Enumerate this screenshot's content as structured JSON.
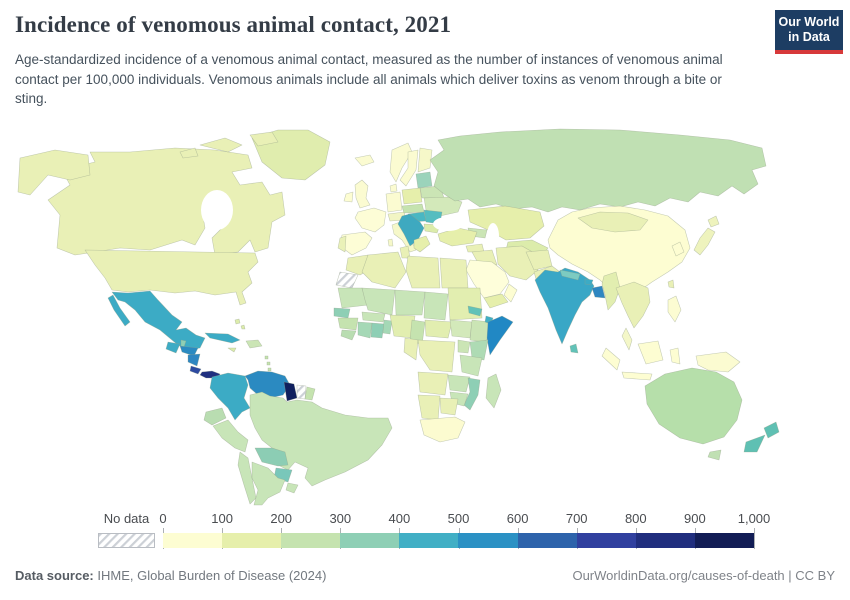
{
  "header": {
    "title": "Incidence of venomous animal contact, 2021",
    "subtitle": "Age-standardized incidence of a venomous animal contact, measured as the number of instances of venomous animal contact per 100,000 individuals. Venomous animals include all animals which deliver toxins as venom through a bite or sting.",
    "logo": {
      "line1": "Our World",
      "line2": "in Data",
      "bg_color": "#1d3d63",
      "accent_color": "#d7393a"
    }
  },
  "chart_data": {
    "type": "choropleth_map",
    "title": "Incidence of venomous animal contact, 2021",
    "unit": "instances of venomous animal contact per 100,000 individuals",
    "year": "2021",
    "legend": {
      "no_data_label": "No data",
      "tick_labels": [
        "0",
        "100",
        "200",
        "300",
        "400",
        "500",
        "600",
        "700",
        "800",
        "900",
        "1,000"
      ],
      "bins": [
        {
          "range": "0-100",
          "color": "#fdfdd2"
        },
        {
          "range": "100-200",
          "color": "#e6efab"
        },
        {
          "range": "200-300",
          "color": "#c5e3af"
        },
        {
          "range": "300-400",
          "color": "#8ecfb5"
        },
        {
          "range": "400-500",
          "color": "#41afc5"
        },
        {
          "range": "500-600",
          "color": "#2b91c4"
        },
        {
          "range": "600-700",
          "color": "#2d63ab"
        },
        {
          "range": "700-800",
          "color": "#30409f"
        },
        {
          "range": "800-900",
          "color": "#202e7e"
        },
        {
          "range": "900-1000",
          "color": "#121d55"
        }
      ]
    },
    "regions": [
      {
        "id": "greenland",
        "bin": "100-200",
        "color": "#e0edae"
      },
      {
        "id": "canada",
        "bin": "100-200",
        "color": "#e9f0b6"
      },
      {
        "id": "usa",
        "bin": "100-200",
        "color": "#e9f0b6"
      },
      {
        "id": "mexico",
        "bin": "400-500",
        "color": "#3cabc5"
      },
      {
        "id": "cuba",
        "bin": "400-500",
        "color": "#3cabc5"
      },
      {
        "id": "bahamas",
        "bin": "100-200",
        "color": "#dcecab"
      },
      {
        "id": "hispaniola",
        "bin": "200-300",
        "color": "#cbe5b5"
      },
      {
        "id": "jamaica",
        "bin": "100-200",
        "color": "#dcecab"
      },
      {
        "id": "lesser_antilles",
        "bin": "200-300",
        "color": "#c5e3af"
      },
      {
        "id": "trinidad",
        "bin": "200-300",
        "color": "#c5e3af"
      },
      {
        "id": "guatemala",
        "bin": "400-500",
        "color": "#3cabc5"
      },
      {
        "id": "belize",
        "bin": "300-400",
        "color": "#8ecfb5"
      },
      {
        "id": "honduras",
        "bin": "500-600",
        "color": "#2b8ac1"
      },
      {
        "id": "nicaragua",
        "bin": "500-600",
        "color": "#2e86c1"
      },
      {
        "id": "costa_rica",
        "bin": "700-800",
        "color": "#2d4aa1"
      },
      {
        "id": "panama",
        "bin": "800-900",
        "color": "#20307f"
      },
      {
        "id": "colombia",
        "bin": "400-500",
        "color": "#3cabc5"
      },
      {
        "id": "venezuela",
        "bin": "500-600",
        "color": "#2b8ac1"
      },
      {
        "id": "guyana",
        "bin": "900-1000",
        "color": "#0f1f5e"
      },
      {
        "id": "suriname",
        "bin": "no data",
        "color": "no-data"
      },
      {
        "id": "french_guiana",
        "bin": "200-300",
        "color": "#c5e3af"
      },
      {
        "id": "ecuador",
        "bin": "200-300",
        "color": "#b9ddb1"
      },
      {
        "id": "peru",
        "bin": "200-300",
        "color": "#c8e5b8"
      },
      {
        "id": "brazil",
        "bin": "200-300",
        "color": "#c8e5b8"
      },
      {
        "id": "bolivia",
        "bin": "300-400",
        "color": "#8ccdb4"
      },
      {
        "id": "paraguay",
        "bin": "300-400",
        "color": "#79c7ba"
      },
      {
        "id": "chile",
        "bin": "200-300",
        "color": "#c8e5b8"
      },
      {
        "id": "argentina",
        "bin": "200-300",
        "color": "#c8e5b8"
      },
      {
        "id": "uruguay",
        "bin": "200-300",
        "color": "#c8e5b8"
      },
      {
        "id": "iceland",
        "bin": "0-100",
        "color": "#fbfbd1"
      },
      {
        "id": "uk",
        "bin": "0-100",
        "color": "#fbfbd1"
      },
      {
        "id": "ireland",
        "bin": "0-100",
        "color": "#fdfdd2"
      },
      {
        "id": "norway",
        "bin": "0-100",
        "color": "#fbfbd1"
      },
      {
        "id": "sweden",
        "bin": "0-100",
        "color": "#fbfbd1"
      },
      {
        "id": "finland",
        "bin": "0-100",
        "color": "#f6f8c9"
      },
      {
        "id": "denmark",
        "bin": "0-100",
        "color": "#fbfbd1"
      },
      {
        "id": "baltics",
        "bin": "300-400",
        "color": "#9bd3bb"
      },
      {
        "id": "belarus",
        "bin": "200-300",
        "color": "#cbe5b5"
      },
      {
        "id": "ukraine",
        "bin": "200-300",
        "color": "#d3e9ba"
      },
      {
        "id": "poland",
        "bin": "100-200",
        "color": "#e6efab"
      },
      {
        "id": "germany",
        "bin": "0-100",
        "color": "#fbfbd1"
      },
      {
        "id": "france",
        "bin": "0-100",
        "color": "#fdfdd6"
      },
      {
        "id": "spain",
        "bin": "0-100",
        "color": "#fdfdd6"
      },
      {
        "id": "portugal",
        "bin": "100-200",
        "color": "#eaf1b8"
      },
      {
        "id": "italy",
        "bin": "0-100",
        "color": "#f6f8c9"
      },
      {
        "id": "alpine",
        "bin": "0-100",
        "color": "#f2f5c4"
      },
      {
        "id": "czech_slovakia",
        "bin": "200-300",
        "color": "#c5e3af"
      },
      {
        "id": "hungary",
        "bin": "400-500",
        "color": "#49b7c3"
      },
      {
        "id": "romania",
        "bin": "300-400",
        "color": "#55bdc0"
      },
      {
        "id": "balkans",
        "bin": "400-500",
        "color": "#3ea9c0"
      },
      {
        "id": "bulgaria",
        "bin": "100-200",
        "color": "#dcecab"
      },
      {
        "id": "greece",
        "bin": "100-200",
        "color": "#e6efab"
      },
      {
        "id": "russia",
        "bin": "200-300",
        "color": "#c0e0b3"
      },
      {
        "id": "turkey",
        "bin": "100-200",
        "color": "#e6efab"
      },
      {
        "id": "caucasus",
        "bin": "200-300",
        "color": "#cbe5b5"
      },
      {
        "id": "syria",
        "bin": "100-200",
        "color": "#e9f0b6"
      },
      {
        "id": "iraq",
        "bin": "100-200",
        "color": "#e9f0b6"
      },
      {
        "id": "iran",
        "bin": "100-200",
        "color": "#e9f0b6"
      },
      {
        "id": "saudi_arabia",
        "bin": "0-100",
        "color": "#fefeda"
      },
      {
        "id": "yemen",
        "bin": "100-200",
        "color": "#e6efab"
      },
      {
        "id": "oman",
        "bin": "0-100",
        "color": "#fdfdd2"
      },
      {
        "id": "afghanistan",
        "bin": "100-200",
        "color": "#e9f0b6"
      },
      {
        "id": "pakistan",
        "bin": "100-200",
        "color": "#e9f0b6"
      },
      {
        "id": "kazakhstan",
        "bin": "100-200",
        "color": "#e6efab"
      },
      {
        "id": "central_asia",
        "bin": "100-200",
        "color": "#dcecab"
      },
      {
        "id": "india",
        "bin": "400-500",
        "color": "#39a7c6"
      },
      {
        "id": "nepal",
        "bin": "300-400",
        "color": "#7ccbc1"
      },
      {
        "id": "bhutan",
        "bin": "400-500",
        "color": "#3cabc5"
      },
      {
        "id": "bangladesh",
        "bin": "500-600",
        "color": "#2e86c1"
      },
      {
        "id": "sri_lanka",
        "bin": "300-400",
        "color": "#62c2b8"
      },
      {
        "id": "myanmar",
        "bin": "100-200",
        "color": "#e2eeb0"
      },
      {
        "id": "se_asia",
        "bin": "100-200",
        "color": "#e9f0b6"
      },
      {
        "id": "malay",
        "bin": "0-100",
        "color": "#f4f7c8"
      },
      {
        "id": "china",
        "bin": "0-100",
        "color": "#fdfdd2"
      },
      {
        "id": "mongolia",
        "bin": "100-200",
        "color": "#e9f0b6"
      },
      {
        "id": "korea",
        "bin": "0-100",
        "color": "#fdfdd2"
      },
      {
        "id": "japan",
        "bin": "100-200",
        "color": "#eef3bd"
      },
      {
        "id": "taiwan",
        "bin": "100-200",
        "color": "#e9f0b6"
      },
      {
        "id": "philippines",
        "bin": "0-100",
        "color": "#fcfcd2"
      },
      {
        "id": "indonesia",
        "bin": "0-100",
        "color": "#fdfdd2"
      },
      {
        "id": "png",
        "bin": "0-100",
        "color": "#fbfbd1"
      },
      {
        "id": "australia",
        "bin": "200-300",
        "color": "#b6dfaa"
      },
      {
        "id": "tasmania",
        "bin": "200-300",
        "color": "#c0e0b3"
      },
      {
        "id": "new_zealand",
        "bin": "300-400",
        "color": "#5fc0b3"
      },
      {
        "id": "morocco",
        "bin": "100-200",
        "color": "#e9f0b6"
      },
      {
        "id": "western_sahara",
        "bin": "no data",
        "color": "no-data"
      },
      {
        "id": "algeria",
        "bin": "100-200",
        "color": "#e9f0b6"
      },
      {
        "id": "tunisia",
        "bin": "100-200",
        "color": "#e9f0b6"
      },
      {
        "id": "libya",
        "bin": "100-200",
        "color": "#e9f0b6"
      },
      {
        "id": "egypt",
        "bin": "100-200",
        "color": "#e9f0b6"
      },
      {
        "id": "mauritania",
        "bin": "200-300",
        "color": "#c8e5b8"
      },
      {
        "id": "mali",
        "bin": "200-300",
        "color": "#c8e5b8"
      },
      {
        "id": "niger",
        "bin": "200-300",
        "color": "#c8e5b8"
      },
      {
        "id": "chad",
        "bin": "200-300",
        "color": "#c8e5b8"
      },
      {
        "id": "sudan",
        "bin": "100-200",
        "color": "#e2eeb0"
      },
      {
        "id": "south_sudan",
        "bin": "200-300",
        "color": "#d3e9ba"
      },
      {
        "id": "eritrea",
        "bin": "300-400",
        "color": "#62c2b8"
      },
      {
        "id": "djibouti",
        "bin": "400-500",
        "color": "#41afc5"
      },
      {
        "id": "ethiopia",
        "bin": "200-300",
        "color": "#cbe5b5"
      },
      {
        "id": "somalia",
        "bin": "500-600",
        "color": "#2188c4"
      },
      {
        "id": "senegal",
        "bin": "300-400",
        "color": "#8ecfb5"
      },
      {
        "id": "guinea",
        "bin": "200-300",
        "color": "#c5e3af"
      },
      {
        "id": "sierra_leone",
        "bin": "200-300",
        "color": "#b9ddb1"
      },
      {
        "id": "ivory_coast",
        "bin": "200-300",
        "color": "#a5d8b6"
      },
      {
        "id": "ghana",
        "bin": "300-400",
        "color": "#8ecfb5"
      },
      {
        "id": "togo_benin",
        "bin": "200-300",
        "color": "#a5d8b6"
      },
      {
        "id": "burkina",
        "bin": "200-300",
        "color": "#c8e5b8"
      },
      {
        "id": "nigeria",
        "bin": "100-200",
        "color": "#e2eeb0"
      },
      {
        "id": "cameroon",
        "bin": "200-300",
        "color": "#c5e3af"
      },
      {
        "id": "car",
        "bin": "100-200",
        "color": "#e2eeb0"
      },
      {
        "id": "congo_gabon",
        "bin": "100-200",
        "color": "#e9f0b6"
      },
      {
        "id": "drc",
        "bin": "100-200",
        "color": "#e9f0b6"
      },
      {
        "id": "uganda",
        "bin": "200-300",
        "color": "#cbe5b5"
      },
      {
        "id": "kenya",
        "bin": "200-300",
        "color": "#aedbb4"
      },
      {
        "id": "tanzania",
        "bin": "200-300",
        "color": "#c8e5b8"
      },
      {
        "id": "angola",
        "bin": "100-200",
        "color": "#e9f0b6"
      },
      {
        "id": "zambia",
        "bin": "200-300",
        "color": "#c8e5b8"
      },
      {
        "id": "mozambique",
        "bin": "300-400",
        "color": "#8ecfb5"
      },
      {
        "id": "zimbabwe",
        "bin": "200-300",
        "color": "#c8e5b8"
      },
      {
        "id": "namibia",
        "bin": "100-200",
        "color": "#e9f0b6"
      },
      {
        "id": "botswana",
        "bin": "100-200",
        "color": "#e9f0b6"
      },
      {
        "id": "south_africa",
        "bin": "0-100",
        "color": "#fcfbd0"
      },
      {
        "id": "madagascar",
        "bin": "200-300",
        "color": "#c8e5b8"
      }
    ]
  },
  "footer": {
    "source_label": "Data source:",
    "source": "IHME, Global Burden of Disease (2024)",
    "link": "OurWorldinData.org/causes-of-death | CC BY"
  }
}
